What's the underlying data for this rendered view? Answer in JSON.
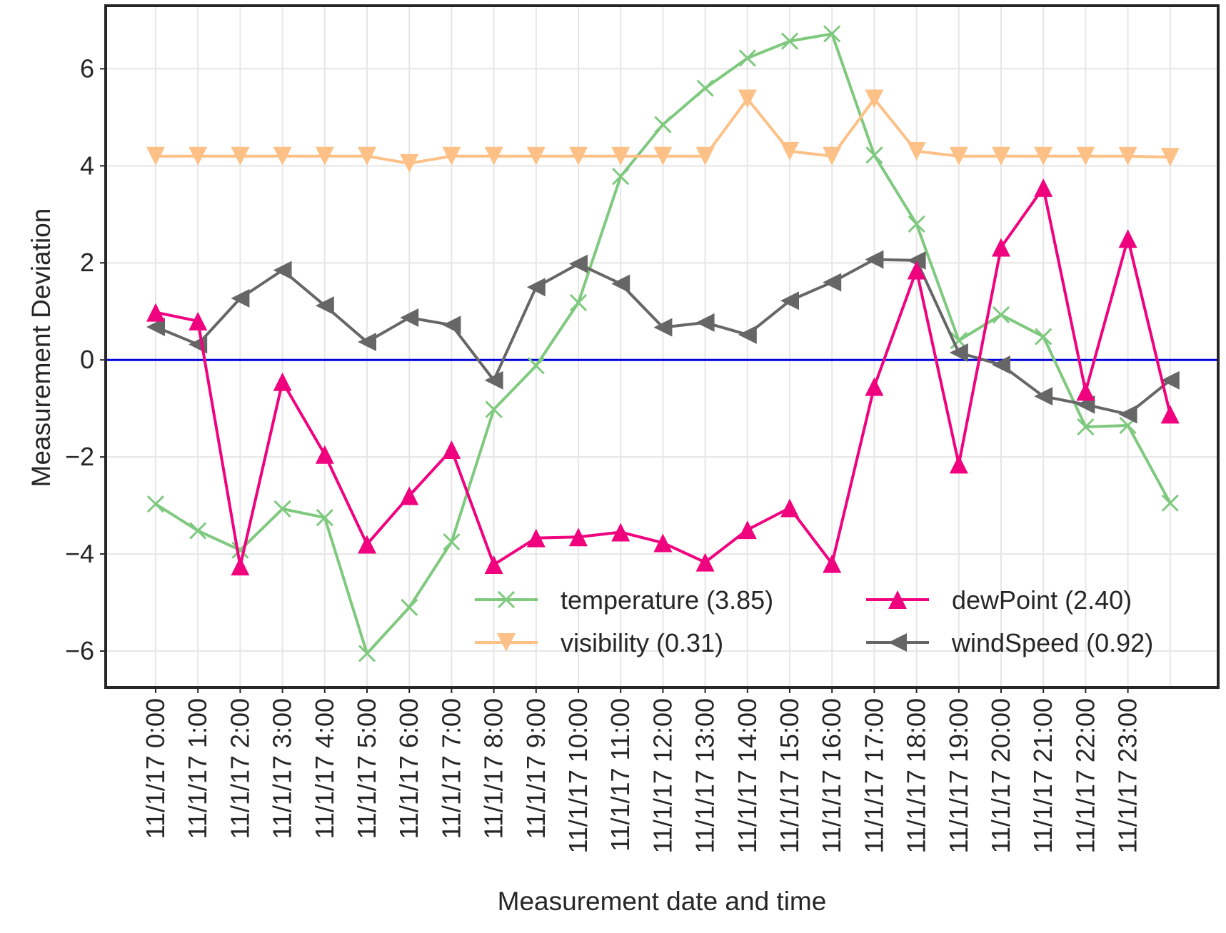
{
  "chart_data": {
    "type": "line",
    "xlabel": "Measurement date and time",
    "ylabel": "Measurement Deviation",
    "ylim": [
      -6.75,
      7.3
    ],
    "yticks": [
      {
        "value": -6,
        "label": "−6"
      },
      {
        "value": -4,
        "label": "−4"
      },
      {
        "value": -2,
        "label": "−2"
      },
      {
        "value": 0,
        "label": "0"
      },
      {
        "value": 2,
        "label": "2"
      },
      {
        "value": 4,
        "label": "4"
      },
      {
        "value": 6,
        "label": "6"
      }
    ],
    "x_count": 25,
    "xticks": [
      "11/1/17 0:00",
      "11/1/17 1:00",
      "11/1/17 2:00",
      "11/1/17 3:00",
      "11/1/17 4:00",
      "11/1/17 5:00",
      "11/1/17 6:00",
      "11/1/17 7:00",
      "11/1/17 8:00",
      "11/1/17 9:00",
      "11/1/17 10:00",
      "11/1/17 11:00",
      "11/1/17 12:00",
      "11/1/17 13:00",
      "11/1/17 14:00",
      "11/1/17 15:00",
      "11/1/17 16:00",
      "11/1/17 17:00",
      "11/1/17 18:00",
      "11/1/17 19:00",
      "11/1/17 20:00",
      "11/1/17 21:00",
      "11/1/17 22:00",
      "11/1/17 23:00"
    ],
    "zero_line": {
      "value": 0,
      "color": "#0000dd"
    },
    "grid": true,
    "legend_position": "lower-right",
    "series": [
      {
        "name": "temperature",
        "legend": "temperature (3.85)",
        "color": "#7fc97f",
        "marker": "x",
        "values": [
          -2.97,
          -3.52,
          -3.92,
          -3.07,
          -3.25,
          -6.05,
          -5.1,
          -3.75,
          -1.02,
          -0.12,
          1.18,
          3.78,
          4.85,
          5.6,
          6.22,
          6.57,
          6.72,
          4.22,
          2.8,
          0.4,
          0.93,
          0.48,
          -1.38,
          -1.35,
          -2.95
        ]
      },
      {
        "name": "dewPoint",
        "legend": "dewPoint (2.40)",
        "color": "#f0027f",
        "marker": "triangle-up",
        "values": [
          0.98,
          0.8,
          -4.25,
          -0.45,
          -1.95,
          -3.8,
          -2.8,
          -1.85,
          -4.22,
          -3.67,
          -3.65,
          -3.55,
          -3.77,
          -4.17,
          -3.5,
          -3.05,
          -4.2,
          -0.55,
          1.85,
          -2.15,
          2.32,
          3.55,
          -0.65,
          2.5,
          -1.12
        ]
      },
      {
        "name": "visibility",
        "legend": "visibility (0.31)",
        "color": "#fdc086",
        "marker": "triangle-down",
        "values": [
          4.2,
          4.2,
          4.2,
          4.2,
          4.2,
          4.2,
          4.05,
          4.2,
          4.2,
          4.2,
          4.2,
          4.2,
          4.2,
          4.2,
          5.38,
          4.3,
          4.2,
          5.38,
          4.3,
          4.2,
          4.2,
          4.2,
          4.2,
          4.2,
          4.18
        ]
      },
      {
        "name": "windSpeed",
        "legend": "windSpeed (0.92)",
        "color": "#666666",
        "marker": "triangle-left",
        "values": [
          0.68,
          0.32,
          1.27,
          1.85,
          1.12,
          0.37,
          0.87,
          0.72,
          -0.42,
          1.5,
          1.98,
          1.57,
          0.67,
          0.77,
          0.52,
          1.22,
          1.6,
          2.07,
          2.05,
          0.15,
          -0.1,
          -0.75,
          -0.92,
          -1.12,
          -0.42
        ]
      }
    ]
  }
}
